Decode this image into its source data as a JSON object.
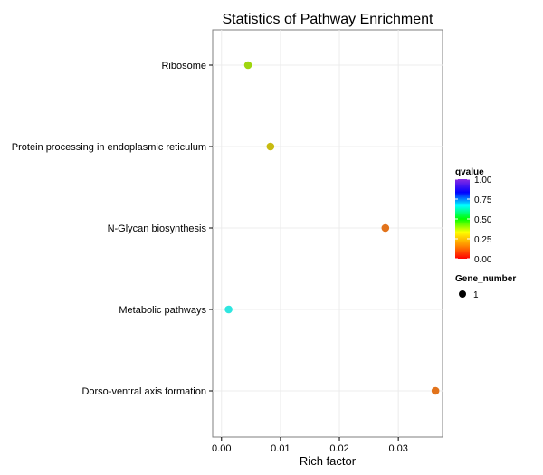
{
  "chart_data": {
    "type": "scatter",
    "title": "Statistics of Pathway Enrichment",
    "xlabel": "Rich factor",
    "ylabel": "",
    "xlim": [
      -0.0015,
      0.0375
    ],
    "x_ticks": [
      0.0,
      0.01,
      0.02,
      0.03
    ],
    "x_tick_labels": [
      "0.00",
      "0.01",
      "0.02",
      "0.03"
    ],
    "categories": [
      "Ribosome",
      "Protein processing in endoplasmic reticulum",
      "N-Glycan biosynthesis",
      "Metabolic pathways",
      "Dorso-ventral axis formation"
    ],
    "points": [
      {
        "category": "Ribosome",
        "x": 0.0045,
        "qvalue": 0.3,
        "gene_number": 1,
        "color": "#9fd60f"
      },
      {
        "category": "Protein processing in endoplasmic reticulum",
        "x": 0.0083,
        "qvalue": 0.22,
        "gene_number": 1,
        "color": "#c8bb10"
      },
      {
        "category": "N-Glycan biosynthesis",
        "x": 0.0278,
        "qvalue": 0.08,
        "gene_number": 1,
        "color": "#e2731b"
      },
      {
        "category": "Metabolic pathways",
        "x": 0.0012,
        "qvalue": 0.52,
        "gene_number": 1,
        "color": "#2fe6e0"
      },
      {
        "category": "Dorso-ventral axis formation",
        "x": 0.0363,
        "qvalue": 0.08,
        "gene_number": 1,
        "color": "#e2731b"
      }
    ],
    "grid": true,
    "color_legend": {
      "title": "qvalue",
      "range": [
        0.0,
        1.0
      ],
      "ticks": [
        "1.00",
        "0.75",
        "0.50",
        "0.25",
        "0.00"
      ],
      "colors": [
        "#ff0000",
        "#ff8c00",
        "#ffff00",
        "#00ff00",
        "#00ffff",
        "#0000ff",
        "#8a2be2"
      ]
    },
    "size_legend": {
      "title": "Gene_number",
      "entries": [
        "1"
      ]
    },
    "legend_position": "right"
  }
}
